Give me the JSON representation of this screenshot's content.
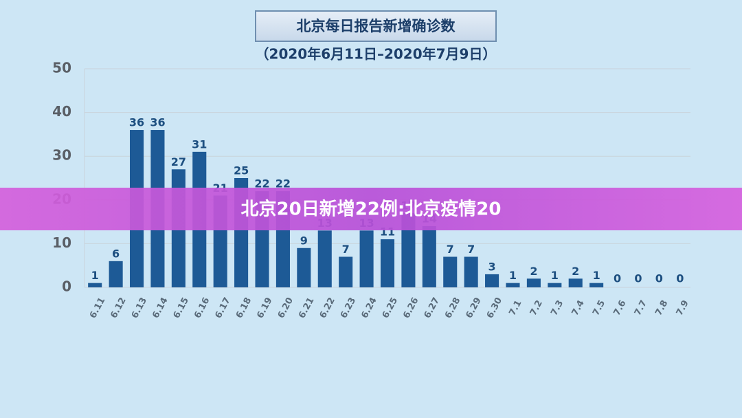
{
  "chart_data": {
    "type": "bar",
    "title": "北京每日报告新增确诊数",
    "subtitle": "（2020年6月11日–2020年7月9日）",
    "categories": [
      "6.11",
      "6.12",
      "6.13",
      "6.14",
      "6.15",
      "6.16",
      "6.17",
      "6.18",
      "6.19",
      "6.20",
      "6.21",
      "6.22",
      "6.23",
      "6.24",
      "6.25",
      "6.26",
      "6.27",
      "6.28",
      "6.29",
      "6.30",
      "7.1",
      "7.2",
      "7.3",
      "7.4",
      "7.5",
      "7.6",
      "7.7",
      "7.8",
      "7.9"
    ],
    "values": [
      1,
      6,
      36,
      36,
      27,
      31,
      21,
      25,
      22,
      22,
      9,
      13,
      7,
      13,
      11,
      17,
      14,
      7,
      7,
      3,
      1,
      2,
      1,
      2,
      1,
      0,
      0,
      0,
      0
    ],
    "color": "#1d5a96",
    "label_color": "#1d4f80",
    "zero_label_color": "#e0301e",
    "ylim": [
      0,
      50
    ],
    "yticks": [
      0,
      10,
      20,
      30,
      40,
      50
    ],
    "grid": true
  },
  "banner": {
    "text": "北京20日新增22例:北京疫情20"
  }
}
